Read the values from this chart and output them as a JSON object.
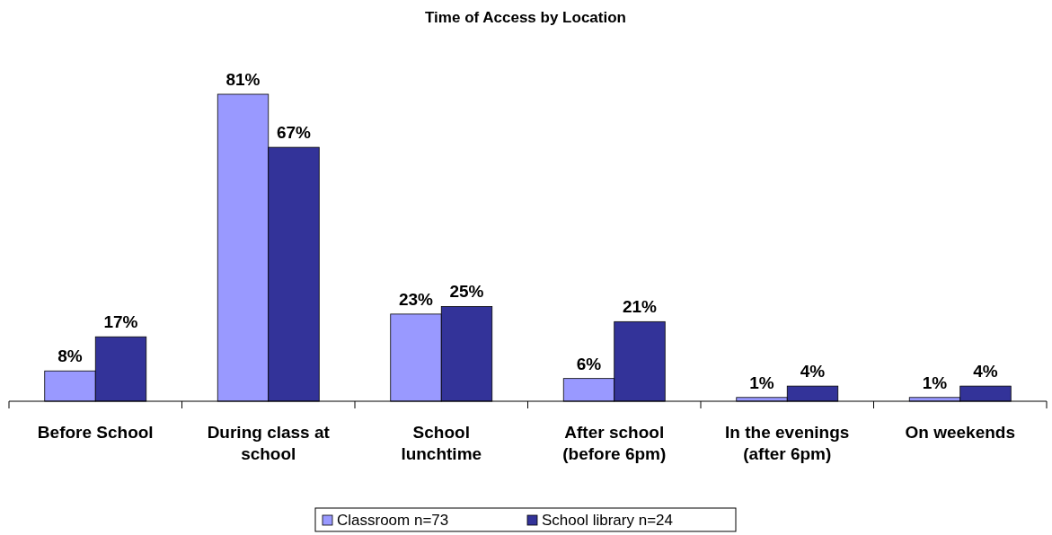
{
  "chart_data": {
    "type": "bar",
    "title": "Time of Access by Location",
    "categories": [
      "Before School",
      "During class at school",
      "School lunchtime",
      "After school (before 6pm)",
      "In the evenings (after 6pm)",
      "On weekends"
    ],
    "series": [
      {
        "name": "Classroom n=73",
        "color": "#9999ff",
        "values": [
          8,
          81,
          23,
          6,
          1,
          1
        ],
        "value_labels": [
          "8%",
          "81%",
          "23%",
          "6%",
          "1%",
          "1%"
        ]
      },
      {
        "name": "School library n=24",
        "color": "#333399",
        "values": [
          17,
          67,
          25,
          21,
          4,
          4
        ],
        "value_labels": [
          "17%",
          "67%",
          "25%",
          "21%",
          "4%",
          "4%"
        ]
      }
    ],
    "legend": "bottom"
  }
}
